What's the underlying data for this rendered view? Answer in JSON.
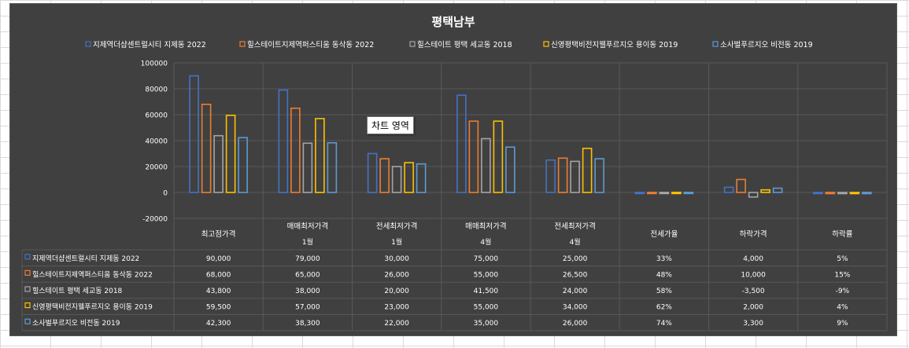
{
  "chart_data": {
    "type": "bar",
    "title": "평택남부",
    "categories": [
      {
        "line1": "최고점가격",
        "line2": ""
      },
      {
        "line1": "매매최저가격",
        "line2": "1월"
      },
      {
        "line1": "전세최저가격",
        "line2": "1월"
      },
      {
        "line1": "매매최저가격",
        "line2": "4월"
      },
      {
        "line1": "전세최저가격",
        "line2": "4월"
      },
      {
        "line1": "전세가율",
        "line2": ""
      },
      {
        "line1": "하락가격",
        "line2": ""
      },
      {
        "line1": "하락률",
        "line2": ""
      }
    ],
    "ylim": [
      -20000,
      100000
    ],
    "yticks": [
      "100000",
      "80000",
      "60000",
      "40000",
      "20000",
      "0",
      "-20000"
    ],
    "legend_position": "top",
    "grid": true,
    "series": [
      {
        "name": "지제역더샵센트럴시티 지제동 2022",
        "color": "#4472c4",
        "values": [
          90000,
          79000,
          30000,
          75000,
          25000,
          33,
          4000,
          5
        ],
        "labels": [
          "90,000",
          "79,000",
          "30,000",
          "75,000",
          "25,000",
          "33%",
          "4,000",
          "5%"
        ]
      },
      {
        "name": "힐스테이트지제역퍼스티움 동삭동 2022",
        "color": "#ed7d31",
        "values": [
          68000,
          65000,
          26000,
          55000,
          26500,
          48,
          10000,
          15
        ],
        "labels": [
          "68,000",
          "65,000",
          "26,000",
          "55,000",
          "26,500",
          "48%",
          "10,000",
          "15%"
        ]
      },
      {
        "name": "힐스테이트 평택 세교동 2018",
        "color": "#a5a5a5",
        "values": [
          43800,
          38000,
          20000,
          41500,
          24000,
          58,
          -3500,
          -9
        ],
        "labels": [
          "43,800",
          "38,000",
          "20,000",
          "41,500",
          "24,000",
          "58%",
          "-3,500",
          "-9%"
        ]
      },
      {
        "name": "신영평택비전지웰푸르지오 용이동 2019",
        "color": "#ffc000",
        "values": [
          59500,
          57000,
          23000,
          55000,
          34000,
          62,
          2000,
          4
        ],
        "labels": [
          "59,500",
          "57,000",
          "23,000",
          "55,000",
          "34,000",
          "62%",
          "2,000",
          "4%"
        ]
      },
      {
        "name": "소사벌푸르지오 비전동 2019",
        "color": "#5b9bd5",
        "values": [
          42300,
          38300,
          22000,
          35000,
          26000,
          74,
          3300,
          9
        ],
        "labels": [
          "42,300",
          "38,300",
          "22,000",
          "35,000",
          "26,000",
          "74%",
          "3,300",
          "9%"
        ]
      }
    ]
  },
  "tooltip": {
    "text": "차트 영역"
  },
  "colors": {
    "background": "#404040",
    "gridline": "#595959",
    "text": "#ffffff"
  }
}
